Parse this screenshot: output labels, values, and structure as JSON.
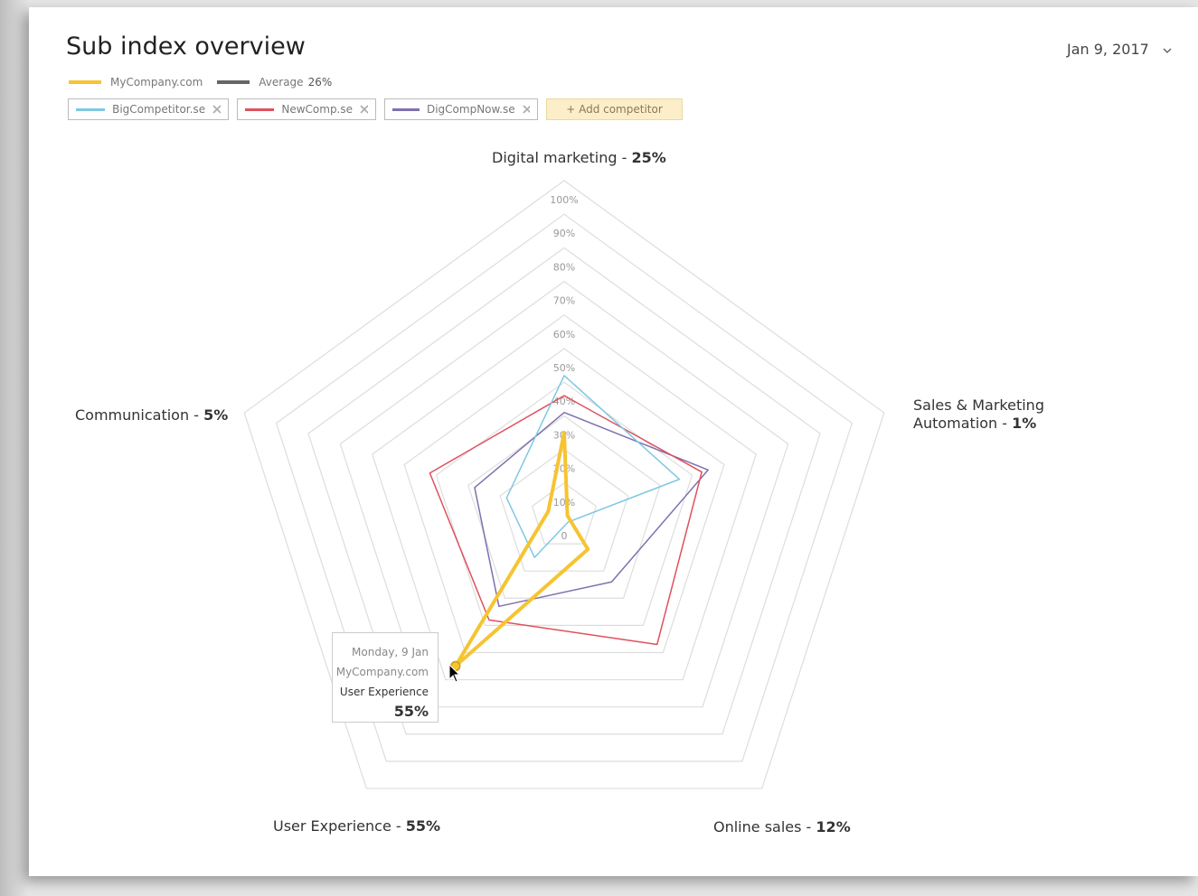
{
  "header": {
    "title": "Sub index overview",
    "date": "Jan 9, 2017"
  },
  "legend": {
    "average": {
      "name": "Average",
      "label": "26%"
    },
    "add_button": "+ Add competitor"
  },
  "tooltip": {
    "date": "Monday, 9 Jan"
  },
  "chart_data": {
    "type": "radar",
    "categories": [
      "Digital marketing",
      "Sales & Marketing Automation",
      "Online sales",
      "User Experience",
      "Communication"
    ],
    "label_separator": " - ",
    "rlim": [
      0,
      100
    ],
    "rticks": [
      0,
      {
        "value": 10,
        "label": "10%"
      },
      {
        "value": 20,
        "label": "20%"
      },
      {
        "value": 30,
        "label": "30%"
      },
      {
        "value": 40,
        "label": "40%"
      },
      {
        "value": 50,
        "label": "50%"
      },
      {
        "value": 60,
        "label": "60%"
      },
      {
        "value": 70,
        "label": "70%"
      },
      {
        "value": 80,
        "label": "80%"
      },
      {
        "value": 90,
        "label": "90%"
      },
      {
        "value": 100,
        "label": "100%"
      }
    ],
    "grid": true,
    "series": [
      {
        "name": "MyCompany.com",
        "color": "#f6c431",
        "values": [
          25,
          1,
          12,
          55,
          5
        ],
        "value_labels": [
          "25%",
          "1%",
          "12%",
          "55%",
          "5%"
        ]
      },
      {
        "name": "BigCompetitor.se",
        "color": "#7ec8e3",
        "values": [
          42,
          36,
          2,
          15,
          18
        ]
      },
      {
        "name": "NewComp.se",
        "color": "#e0505e",
        "values": [
          36,
          43,
          47,
          38,
          42
        ]
      },
      {
        "name": "DigCompNow.se",
        "color": "#7f70b0",
        "values": [
          31,
          45,
          24,
          33,
          28
        ]
      }
    ]
  }
}
